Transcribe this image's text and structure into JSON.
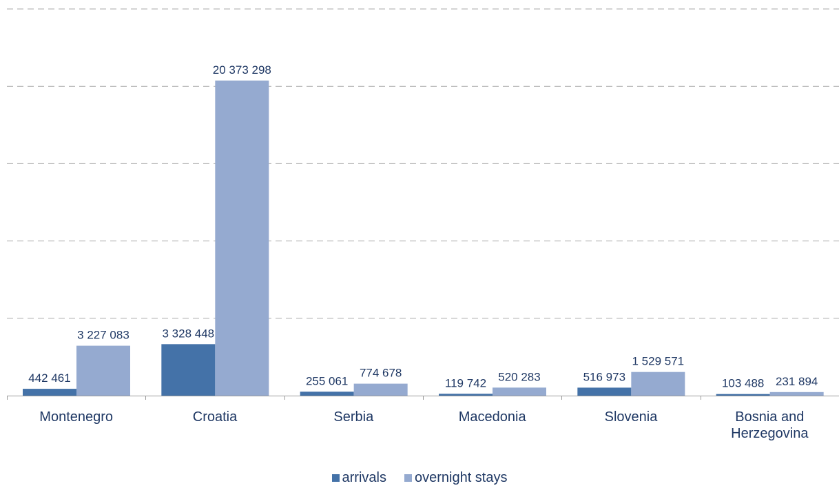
{
  "chart_data": {
    "type": "bar",
    "categories": [
      "Montenegro",
      "Croatia",
      "Serbia",
      "Macedonia",
      "Slovenia",
      "Bosnia and Herzegovina"
    ],
    "category_lines": [
      [
        "Montenegro"
      ],
      [
        "Croatia"
      ],
      [
        "Serbia"
      ],
      [
        "Macedonia"
      ],
      [
        "Slovenia"
      ],
      [
        "Bosnia and",
        "Herzegovina"
      ]
    ],
    "series": [
      {
        "name": "arrivals",
        "color": "#4472a8",
        "values": [
          442461,
          3328448,
          255061,
          119742,
          516973,
          103488
        ],
        "labels": [
          "442 461",
          "3 328 448",
          "255 061",
          "119 742",
          "516 973",
          "103 488"
        ]
      },
      {
        "name": "overnight stays",
        "color": "#95aad0",
        "values": [
          3227083,
          20373298,
          774678,
          520283,
          1529571,
          231894
        ],
        "labels": [
          "3 227 083",
          "20 373 298",
          "774 678",
          "520 283",
          "1 529 571",
          "231 894"
        ]
      }
    ],
    "ylim": [
      0,
      25000000
    ],
    "grid": true,
    "legend_position": "bottom"
  },
  "colors": {
    "axis_text": "#1f3864",
    "grid": "#aaaaaa",
    "axis": "#999999"
  }
}
